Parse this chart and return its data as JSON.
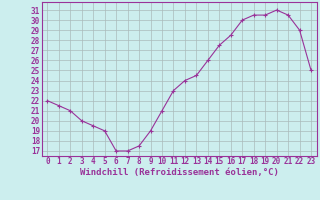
{
  "x": [
    0,
    1,
    2,
    3,
    4,
    5,
    6,
    7,
    8,
    9,
    10,
    11,
    12,
    13,
    14,
    15,
    16,
    17,
    18,
    19,
    20,
    21,
    22,
    23
  ],
  "y": [
    22,
    21.5,
    21,
    20,
    19.5,
    19,
    17,
    17,
    17.5,
    19,
    21,
    23,
    24,
    24.5,
    26,
    27.5,
    28.5,
    30,
    30.5,
    30.5,
    31,
    30.5,
    29,
    25
  ],
  "line_color": "#993399",
  "marker": "+",
  "bg_color": "#cceeee",
  "grid_color": "#aabbbb",
  "xlabel": "Windchill (Refroidissement éolien,°C)",
  "ylabel_ticks": [
    17,
    18,
    19,
    20,
    21,
    22,
    23,
    24,
    25,
    26,
    27,
    28,
    29,
    30,
    31
  ],
  "xlim": [
    -0.5,
    23.5
  ],
  "ylim": [
    16.5,
    31.8
  ],
  "xlabel_color": "#993399",
  "tick_color": "#993399",
  "tick_fontsize": 5.5,
  "xlabel_fontsize": 6.5
}
